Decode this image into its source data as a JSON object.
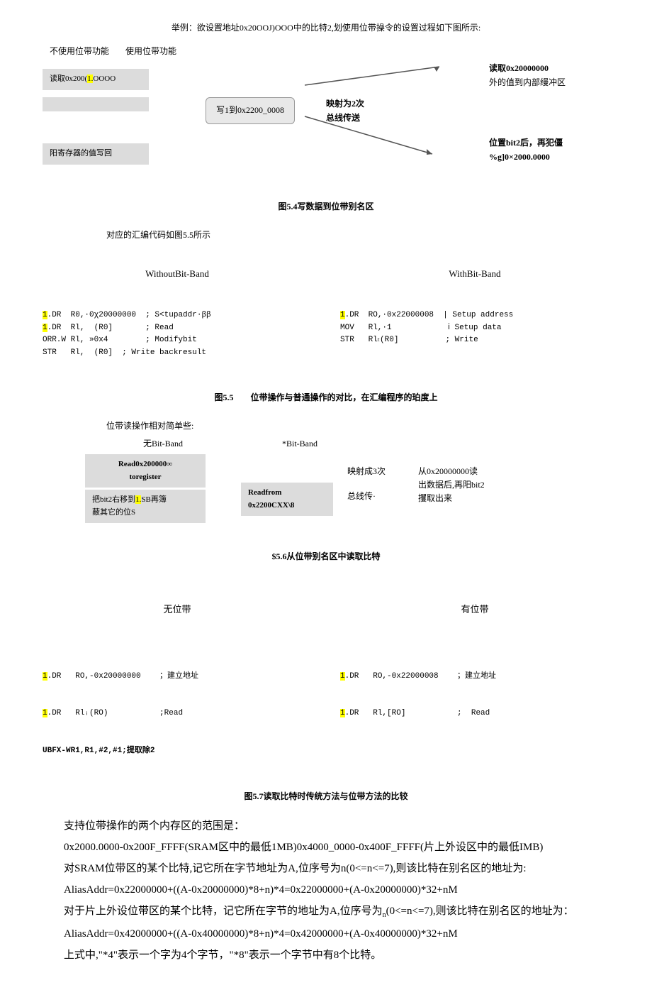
{
  "intro": "举例：欲设置地址0x20OOJ)OOO中的比特2,划使用位带操令的设置过程如下图所示:",
  "d1": {
    "label_no": "不使用位带功能",
    "label_yes": "使用位带功能",
    "box_read_prefix": "读取0x200(",
    "box_read_hl": "1.",
    "box_read_suffix": "OOOO",
    "box_mid": "写1到0x2200_0008",
    "box_writeback": "阳寄存器的值写回",
    "ann_read1": "读取0x20000000",
    "ann_read2": "外的值到内部缦冲区",
    "ann_map1": "映射为2次",
    "ann_map2": "总线传送",
    "ann_set1": "位置bit2后，再犯僵",
    "ann_set2": "%g]0×2000.0000",
    "caption": "图5.4写数据到位带别名区"
  },
  "code1": {
    "lead": "对应的汇编代码如图5.5所示",
    "left_title": "WithoutBit-Band",
    "right_title": "WithBit-Band",
    "left": ".DR  R0,·0χ20000000  ; S<tupaddr·ββ\n.DR  Rl,  (R0]       ; Read\nORR.W Rl, »0x4        ; Modifybit\nSTR   Rl,  (R0]  ; Write backresult",
    "right": ".DR  RO,·0x22000008  | Setup address\nMOV   Rl,·1            ⅰ Setup data\nSTR   Rlₜ(R0]          ; Write",
    "hl_line0": "1",
    "hl_line1": "1",
    "hl_right0": "1",
    "caption": "图5.5　　位带操作与普通操作的对比，在汇编程序的珀度上"
  },
  "d2": {
    "lead": "位带读操作相对简单些:",
    "no_title": "无Bit-Band",
    "yes_title": "*Bit-Band",
    "box_read": "Read0x200000∞\ntoregister",
    "box_shift_pre": "把bit2右移到",
    "box_shift_hl": "1.",
    "box_shift_post": "SB再簿\n蔽其它的位S",
    "box_readfrom": "Readfrom\n0x2200CXX\\8",
    "ann_map1": "映射成3次",
    "ann_map2": "总线传·",
    "ann_right1": "从0x20000000读",
    "ann_right2": "出数据后,再阳bit2",
    "ann_right3": "攫取出来",
    "caption": "$5.6从位带别名区中读取比特"
  },
  "code2": {
    "left_title": "无位带",
    "right_title": "有位带",
    "left_l1_hl": "1",
    "left_l1": ".DR   RO,-0x20000000    ；建立地址",
    "left_l2_hl": "1",
    "left_l2": ".DR   Rlᵢ(RO)           ;Read",
    "left_l3": "UBFX-WR1,R1,#2,#1;提取除2",
    "right_l1_hl": "1",
    "right_l1": ".DR   RO,-0x22000008    ；建立地址",
    "right_l2_hl": "1",
    "right_l2": ".DR   Rl,[RO]           ;  Read",
    "caption": "图5.7读取比特时传统方法与位带方法的比较"
  },
  "body": {
    "p1": "支持位带操作的两个内存区的范围是：",
    "p2": "0x2000.0000-0x200F_FFFF(SRAM区中的最低1MB)0x4000_0000-0x400F_FFFF(片上外设区中的最低IMB)",
    "p3": "对SRAM位带区的某个比特,记它所在字节地址为A,位序号为n(0<=n<=7),则该比特在别名区的地址为:",
    "p4": "AliasAddr=0x22000000+((A-0x20000000)*8+n)*4=0x22000000+(A-0x20000000)*32+nM",
    "p5_a": "对于片上外设位带区的某个比特，记它所在字节的地址为A,位序号为",
    "p5_b": "n",
    "p5_c": "(0<=n<=7),则该比特在别名区的地址为：",
    "p6": "AliasAddr=0x42000000+((A-0x40000000)*8+n)*4=0x42000000+(A-0x40000000)*32+nM",
    "p7": "上式中,\"*4\"表示一个字为4个字节，\"*8\"表示一个字节中有8个比特。"
  }
}
